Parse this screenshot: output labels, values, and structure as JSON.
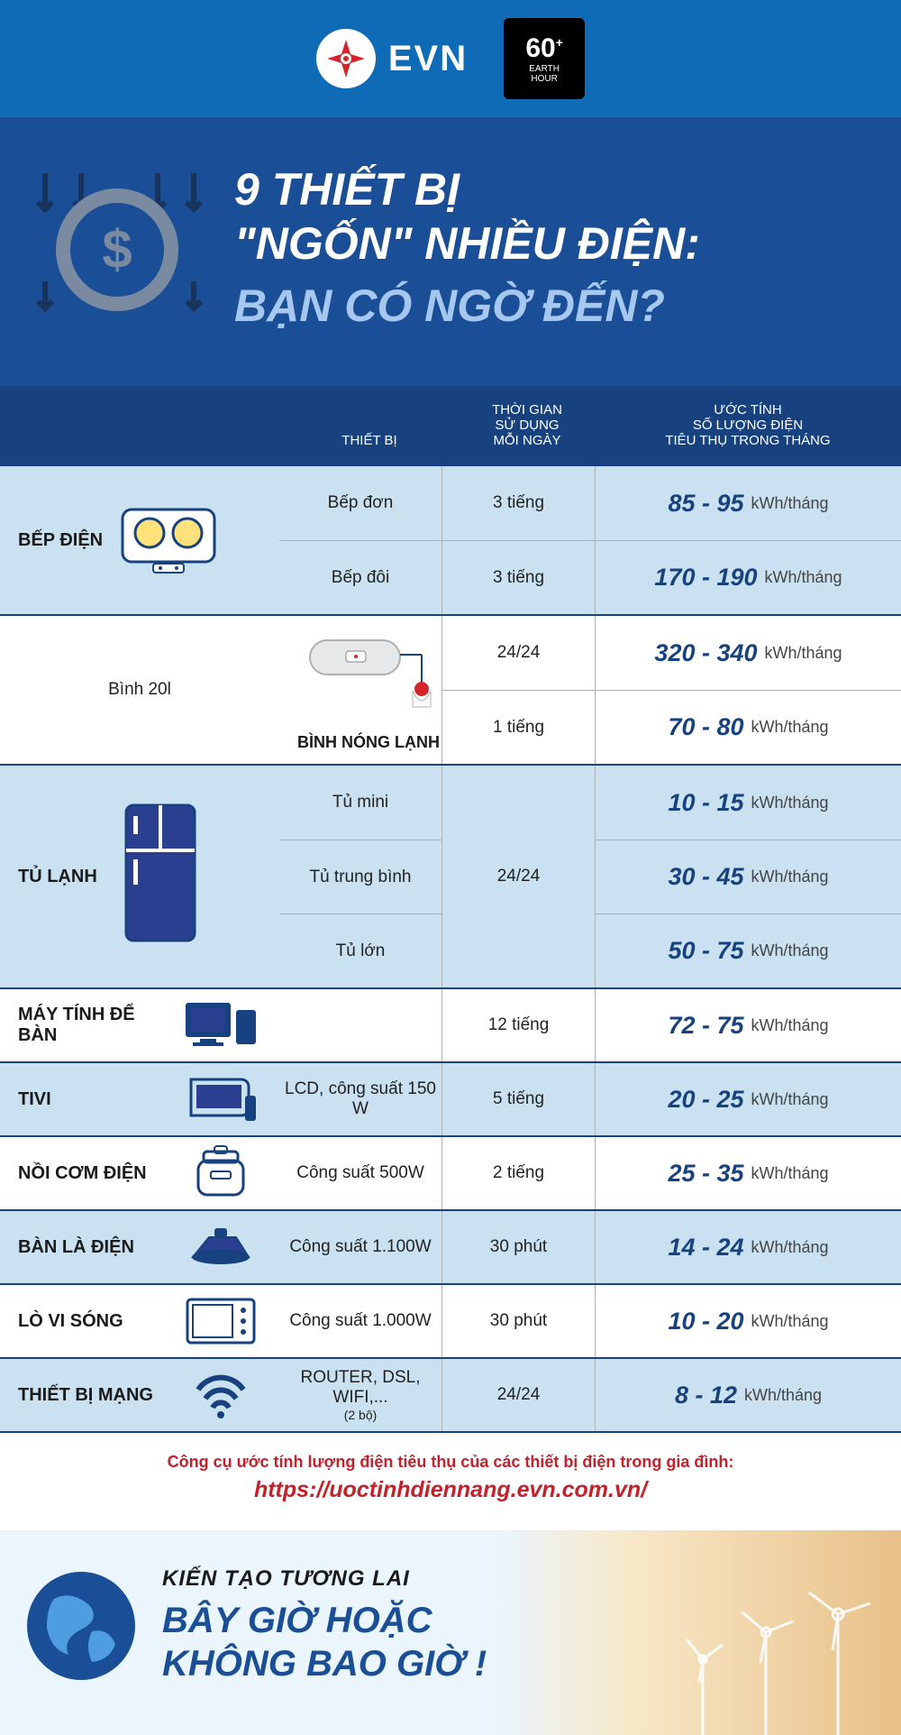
{
  "brand": "EVN",
  "earth_hour": {
    "big": "60",
    "plus": "+",
    "line1": "EARTH",
    "line2": "HOUR"
  },
  "title": {
    "line1a": "9 THIẾT BỊ",
    "line1b": "\"NGỐN\" NHIỀU ĐIỆN:",
    "line2": "BẠN CÓ NGỜ ĐẾN?"
  },
  "headers": {
    "col1": "",
    "col2": "THIẾT BỊ",
    "col3": "THỜI GIAN\nSỬ DỤNG\nMỖI NGÀY",
    "col4": "ƯỚC TÍNH\nSỐ LƯỢNG ĐIỆN\nTIÊU THỤ TRONG THÁNG"
  },
  "unit": "kWh/tháng",
  "categories": [
    {
      "name": "BẾP ĐIỆN",
      "alt": true,
      "rows": [
        {
          "device": "Bếp đơn",
          "time": "3 tiếng",
          "energy": "85 - 95"
        },
        {
          "device": "Bếp đôi",
          "time": "3 tiếng",
          "energy": "170 - 190"
        }
      ]
    },
    {
      "name": "BÌNH NÓNG LẠNH",
      "alt": false,
      "device_label": "Bình 20l",
      "rows": [
        {
          "device": "",
          "time": "24/24",
          "energy": "320 - 340"
        },
        {
          "device": "",
          "time": "1 tiếng",
          "energy": "70 - 80"
        }
      ]
    },
    {
      "name": "TỦ LẠNH",
      "alt": true,
      "shared_time": "24/24",
      "rows": [
        {
          "device": "Tủ mini",
          "energy": "10 - 15"
        },
        {
          "device": "Tủ trung bình",
          "energy": "30 - 45"
        },
        {
          "device": "Tủ lớn",
          "energy": "50 - 75"
        }
      ]
    }
  ],
  "simple_rows": [
    {
      "name": "MÁY TÍNH ĐỂ BÀN",
      "alt": false,
      "device": "",
      "time": "12 tiếng",
      "energy": "72 - 75"
    },
    {
      "name": "TIVI",
      "alt": true,
      "device": "LCD, công suất 150 W",
      "time": "5 tiếng",
      "energy": "20 - 25"
    },
    {
      "name": "NỒI CƠM ĐIỆN",
      "alt": false,
      "device": "Công suất 500W",
      "time": "2 tiếng",
      "energy": "25 - 35"
    },
    {
      "name": "BÀN LÀ ĐIỆN",
      "alt": true,
      "device": "Công suất 1.100W",
      "time": "30 phút",
      "energy": "14 - 24"
    },
    {
      "name": "LÒ VI SÓNG",
      "alt": false,
      "device": "Công suất 1.000W",
      "time": "30 phút",
      "energy": "10 - 20"
    },
    {
      "name": "THIẾT BỊ MẠNG",
      "alt": true,
      "device": "ROUTER, DSL, WIFI,...",
      "device_sub": "(2 bộ)",
      "time": "24/24",
      "energy": "8 - 12"
    }
  ],
  "footer_note": {
    "label": "Công cụ ước tính lượng điện tiêu thụ của các thiết bị điện trong gia đình:",
    "url": "https://uoctinhdiennang.evn.com.vn/"
  },
  "banner": {
    "line1": "KIẾN TẠO TƯƠNG LAI",
    "line2a": "BÂY GIỜ HOẶC",
    "line2b": "KHÔNG BAO GIỜ !"
  },
  "colors": {
    "header_top": "#0f6bb5",
    "title_bg": "#1a4e96",
    "table_header": "#17427f",
    "alt_row": "#c9e1f0",
    "accent_red": "#c7202b"
  }
}
